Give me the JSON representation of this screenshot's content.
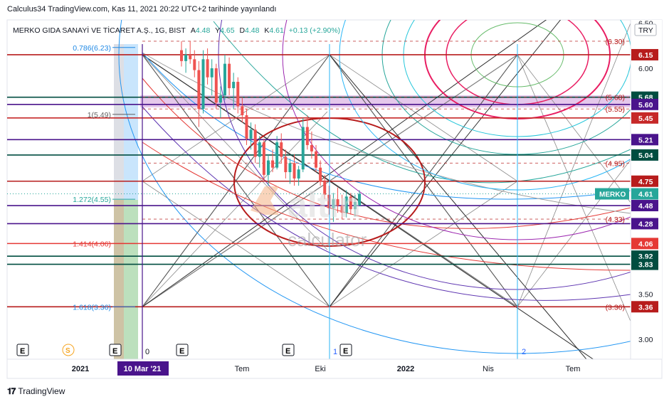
{
  "header": {
    "published": "Calculus34 TradingView.com, Kas 11, 2021 20:22 UTC+2 tarihinde yayınlandı"
  },
  "symbol_line": {
    "name": "MERKO GIDA SANAYİ VE TİCARET A.Ş., 1G, BIST",
    "a_label": "A",
    "a_value": "4.48",
    "y_label": "Y",
    "y_value": "4.65",
    "d_label": "D",
    "d_value": "4.48",
    "k_label": "K",
    "k_value": "4.61",
    "change": "+0.13 (+2.90%)"
  },
  "currency": "TRY",
  "watermark": {
    "brand": "altın",
    "sub": "calculator"
  },
  "footer": {
    "brand": "TradingView"
  },
  "colors": {
    "up": "#26a69a",
    "down": "#ef5350",
    "purple": "#4a148c",
    "red": "#b71c1c",
    "teal": "#004d40",
    "magenta_band": "#e1bee7"
  },
  "chart_data": {
    "type": "candlestick",
    "symbol": "MERKO",
    "last_price": 4.61,
    "y_axis_ticks": [
      "3.00",
      "3.50",
      "6.00",
      "6.50"
    ],
    "x_axis_labels": [
      "2021",
      "10 Mar '21",
      "Tem",
      "Eki",
      "2022",
      "Nis",
      "Tem"
    ],
    "ylim": [
      2.85,
      6.6
    ],
    "price_lines": [
      {
        "value": 6.15,
        "label": "6.15",
        "color": "#b71c1c"
      },
      {
        "value": 5.68,
        "label": "5.68",
        "color": "#004d40"
      },
      {
        "value": 5.6,
        "label": "5.60",
        "color": "#4a148c"
      },
      {
        "value": 5.45,
        "label": "5.45",
        "color": "#c62828"
      },
      {
        "value": 5.21,
        "label": "5.21",
        "color": "#4a148c"
      },
      {
        "value": 5.04,
        "label": "5.04",
        "color": "#004d40"
      },
      {
        "value": 4.75,
        "label": "4.75",
        "color": "#b71c1c"
      },
      {
        "value": 4.48,
        "label": "4.48",
        "color": "#4a148c"
      },
      {
        "value": 4.28,
        "label": "4.28",
        "color": "#4a148c"
      },
      {
        "value": 4.06,
        "label": "4.06",
        "color": "#e53935"
      },
      {
        "value": 3.92,
        "label": "3.92",
        "color": "#004d40"
      },
      {
        "value": 3.83,
        "label": "3.83",
        "color": "#004d40"
      },
      {
        "value": 3.36,
        "label": "3.36",
        "color": "#b71c1c"
      }
    ],
    "fib_labels": [
      {
        "text": "0.786(6.23)",
        "value": 6.23
      },
      {
        "text": "1(5.49)",
        "value": 5.49
      },
      {
        "text": "1.272(4.55)",
        "value": 4.55
      },
      {
        "text": "1.414(4.06)",
        "value": 4.06
      },
      {
        "text": "1.618(3.36)",
        "value": 3.36
      }
    ],
    "right_dashed_labels": [
      {
        "text": "(6.30)",
        "value": 6.3
      },
      {
        "text": "(5.68)",
        "value": 5.68
      },
      {
        "text": "(5.55)",
        "value": 5.55
      },
      {
        "text": "(4.95)",
        "value": 4.95
      },
      {
        "text": "(4.33)",
        "value": 4.33
      },
      {
        "text": "(3.36)",
        "value": 3.36
      }
    ],
    "markers": [
      "0",
      "1",
      "2"
    ],
    "event_badges": [
      "E",
      "S",
      "E",
      "E",
      "E",
      "E"
    ],
    "candles": [
      {
        "o": 6.2,
        "h": 6.3,
        "l": 6.02,
        "c": 6.08
      },
      {
        "o": 6.08,
        "h": 6.22,
        "l": 5.95,
        "c": 6.15
      },
      {
        "o": 6.15,
        "h": 6.3,
        "l": 6.05,
        "c": 6.1
      },
      {
        "o": 6.1,
        "h": 6.2,
        "l": 5.9,
        "c": 5.98
      },
      {
        "o": 5.98,
        "h": 6.08,
        "l": 5.35,
        "c": 5.55
      },
      {
        "o": 5.55,
        "h": 6.2,
        "l": 5.5,
        "c": 6.1
      },
      {
        "o": 6.1,
        "h": 6.22,
        "l": 5.82,
        "c": 5.9
      },
      {
        "o": 5.9,
        "h": 6.1,
        "l": 5.7,
        "c": 6.0
      },
      {
        "o": 6.0,
        "h": 6.05,
        "l": 5.55,
        "c": 5.62
      },
      {
        "o": 5.62,
        "h": 5.8,
        "l": 5.45,
        "c": 5.7
      },
      {
        "o": 5.7,
        "h": 6.15,
        "l": 5.65,
        "c": 6.05
      },
      {
        "o": 6.05,
        "h": 6.12,
        "l": 5.7,
        "c": 5.78
      },
      {
        "o": 5.78,
        "h": 5.95,
        "l": 5.55,
        "c": 5.85
      },
      {
        "o": 5.85,
        "h": 5.9,
        "l": 5.5,
        "c": 5.58
      },
      {
        "o": 5.58,
        "h": 5.68,
        "l": 5.4,
        "c": 5.48
      },
      {
        "o": 5.48,
        "h": 5.55,
        "l": 5.15,
        "c": 5.22
      },
      {
        "o": 5.22,
        "h": 5.4,
        "l": 5.1,
        "c": 5.32
      },
      {
        "o": 5.32,
        "h": 5.38,
        "l": 4.95,
        "c": 5.02
      },
      {
        "o": 5.02,
        "h": 5.25,
        "l": 4.9,
        "c": 5.18
      },
      {
        "o": 5.18,
        "h": 5.22,
        "l": 4.75,
        "c": 4.82
      },
      {
        "o": 4.82,
        "h": 5.05,
        "l": 4.7,
        "c": 4.98
      },
      {
        "o": 4.98,
        "h": 5.1,
        "l": 4.85,
        "c": 4.9
      },
      {
        "o": 4.9,
        "h": 5.25,
        "l": 4.88,
        "c": 5.18
      },
      {
        "o": 5.18,
        "h": 5.28,
        "l": 4.95,
        "c": 5.02
      },
      {
        "o": 5.02,
        "h": 5.1,
        "l": 4.78,
        "c": 4.85
      },
      {
        "o": 4.85,
        "h": 5.0,
        "l": 4.72,
        "c": 4.95
      },
      {
        "o": 4.95,
        "h": 5.05,
        "l": 4.7,
        "c": 4.78
      },
      {
        "o": 4.78,
        "h": 4.92,
        "l": 4.7,
        "c": 4.88
      },
      {
        "o": 4.88,
        "h": 5.45,
        "l": 4.85,
        "c": 5.35
      },
      {
        "o": 5.35,
        "h": 5.48,
        "l": 5.1,
        "c": 5.15
      },
      {
        "o": 5.15,
        "h": 5.3,
        "l": 5.0,
        "c": 5.08
      },
      {
        "o": 5.08,
        "h": 5.15,
        "l": 4.85,
        "c": 4.9
      },
      {
        "o": 4.9,
        "h": 4.98,
        "l": 4.7,
        "c": 4.75
      },
      {
        "o": 4.75,
        "h": 4.82,
        "l": 4.55,
        "c": 4.6
      },
      {
        "o": 4.6,
        "h": 4.7,
        "l": 4.38,
        "c": 4.45
      },
      {
        "o": 4.45,
        "h": 4.62,
        "l": 4.3,
        "c": 4.55
      },
      {
        "o": 4.55,
        "h": 4.68,
        "l": 4.4,
        "c": 4.48
      },
      {
        "o": 4.48,
        "h": 4.6,
        "l": 4.33,
        "c": 4.4
      },
      {
        "o": 4.4,
        "h": 4.65,
        "l": 4.35,
        "c": 4.58
      },
      {
        "o": 4.58,
        "h": 4.62,
        "l": 4.38,
        "c": 4.44
      },
      {
        "o": 4.44,
        "h": 4.6,
        "l": 4.36,
        "c": 4.52
      },
      {
        "o": 4.48,
        "h": 4.65,
        "l": 4.48,
        "c": 4.61
      }
    ]
  }
}
